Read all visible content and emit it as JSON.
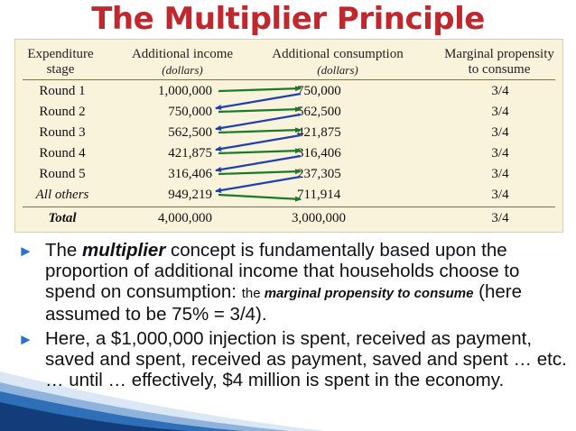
{
  "title": "The Multiplier Principle",
  "table": {
    "headers": {
      "stage": [
        "Expenditure",
        "stage"
      ],
      "income": [
        "Additional income",
        "(dollars)"
      ],
      "consumption": [
        "Additional consumption",
        "(dollars)"
      ],
      "mpc": [
        "Marginal propensity",
        "to consume"
      ]
    },
    "rows": [
      {
        "stage": "Round 1",
        "income": "1,000,000",
        "consumption": "750,000",
        "mpc": "3/4"
      },
      {
        "stage": "Round 2",
        "income": "750,000",
        "consumption": "562,500",
        "mpc": "3/4"
      },
      {
        "stage": "Round 3",
        "income": "562,500",
        "consumption": "421,875",
        "mpc": "3/4"
      },
      {
        "stage": "Round 4",
        "income": "421,875",
        "consumption": "316,406",
        "mpc": "3/4"
      },
      {
        "stage": "Round 5",
        "income": "316,406",
        "consumption": "237,305",
        "mpc": "3/4"
      },
      {
        "stage": "All others",
        "income": "949,219",
        "consumption": "711,914",
        "mpc": "3/4"
      }
    ],
    "total": {
      "stage": "Total",
      "income": "4,000,000",
      "consumption": "3,000,000",
      "mpc": "3/4"
    },
    "arrow_colors": {
      "income_to_consumption": "#1a7a2a",
      "consumption_to_income": "#1f3fb0"
    }
  },
  "bullets": {
    "b1": {
      "p1": "The ",
      "p2": "multiplier",
      "p3": " concept is fundamentally based upon the proportion of additional income that households choose to spend on consumption:  ",
      "p4": "the ",
      "p5": "marginal propensity to consume",
      "p6": " (here assumed to be 75% = 3/4)."
    },
    "b2": "Here, a $1,000,000 injection is spent, received as payment, saved and spent, received as payment, saved and spent … etc. … until … effectively, $4 million is spent in the economy."
  },
  "colors": {
    "title": "#c0282e",
    "bullet_marker": "#2b6fd6",
    "panel": "#f9f3dc"
  }
}
